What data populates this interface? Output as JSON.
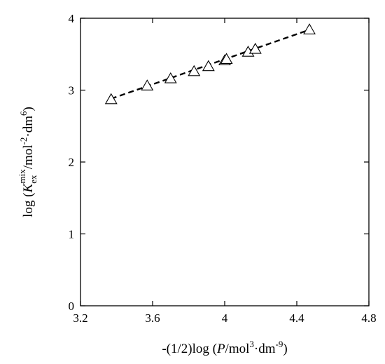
{
  "chart_data": {
    "type": "scatter",
    "xlabel": {
      "prefix": "-(1/2)log (",
      "var": "P",
      "unit1": "/mol",
      "exp1": "3",
      "unit2": "·dm",
      "exp2": "-9",
      "suffix": ")"
    },
    "ylabel": {
      "prefix": "log (",
      "var": "K",
      "subscript": "ex",
      "superscript": "mix",
      "unit1": "/mol",
      "exp1": "-2",
      "unit2": "·dm",
      "exp2": "6",
      "suffix": ")"
    },
    "xlim": [
      3.2,
      4.8
    ],
    "ylim": [
      0,
      4
    ],
    "xticks": [
      3.2,
      3.6,
      4.0,
      4.4,
      4.8
    ],
    "xtick_labels": [
      "3.2",
      "3.6",
      "4",
      "4.4",
      "4.8"
    ],
    "yticks": [
      0,
      1,
      2,
      3,
      4
    ],
    "ytick_labels": [
      "0",
      "1",
      "2",
      "3",
      "4"
    ],
    "grid": false,
    "series": [
      {
        "marker": "open-triangle",
        "points": [
          {
            "x": 3.37,
            "y": 2.87
          },
          {
            "x": 3.57,
            "y": 3.06
          },
          {
            "x": 3.7,
            "y": 3.16
          },
          {
            "x": 3.83,
            "y": 3.26
          },
          {
            "x": 3.91,
            "y": 3.33
          },
          {
            "x": 4.0,
            "y": 3.41
          },
          {
            "x": 4.01,
            "y": 3.43
          },
          {
            "x": 4.13,
            "y": 3.53
          },
          {
            "x": 4.17,
            "y": 3.57
          },
          {
            "x": 4.47,
            "y": 3.84
          }
        ]
      }
    ],
    "fit_line": {
      "style": "dashed",
      "x": [
        3.37,
        4.47
      ],
      "y": [
        2.88,
        3.84
      ]
    }
  },
  "colors": {
    "ink": "#000000",
    "background": "#ffffff"
  }
}
